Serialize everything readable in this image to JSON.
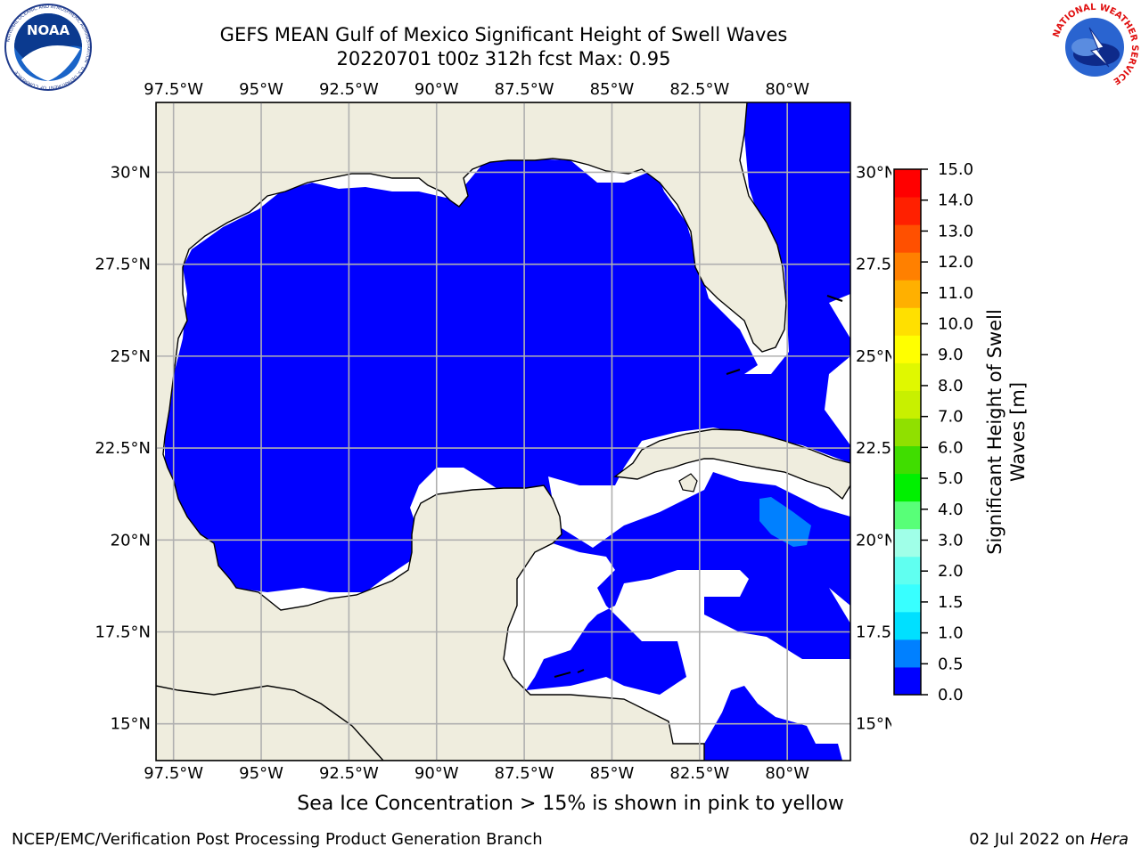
{
  "title_line1": "GEFS MEAN Gulf of Mexico Significant Height of Swell Waves",
  "title_line2": "20220701 t00z 312h fcst   Max: 0.95",
  "note": "Sea Ice Concentration > 15% is shown in pink to yellow",
  "footer_left": "NCEP/EMC/Verification Post Processing Product Generation Branch",
  "footer_date": "02 Jul 2022 on ",
  "footer_host": "Hera",
  "logos": {
    "noaa_text": "NOAA",
    "noaa_ring_text": "NATIONAL OCEANIC AND ATMOSPHERIC ADMINISTRATION · U.S. DEPARTMENT OF COMMERCE",
    "nws_ring_text": "NATIONAL WEATHER SERVICE"
  },
  "map": {
    "lon_labels": [
      "97.5°W",
      "95°W",
      "92.5°W",
      "90°W",
      "87.5°W",
      "85°W",
      "82.5°W",
      "80°W"
    ],
    "lat_labels": [
      "30°N",
      "27.5°N",
      "25°N",
      "22.5°N",
      "20°N",
      "17.5°N",
      "15°N"
    ],
    "lon_values": [
      -97.5,
      -95,
      -92.5,
      -90,
      -87.5,
      -85,
      -82.5,
      -80
    ],
    "lat_values": [
      30,
      27.5,
      25,
      22.5,
      20,
      17.5,
      15
    ],
    "lon_range": [
      -98,
      -78.2
    ],
    "lat_range": [
      14.0,
      31.9
    ],
    "colors": {
      "land": "#efedde",
      "ocean_low": "#0000ff",
      "ocean_mid": "#0080ff",
      "no_data": "#ffffff",
      "grid": "#b0b0b0",
      "coast": "#000000"
    }
  },
  "colorbar": {
    "label_line1": "Significant Height of Swell",
    "label_line2": "Waves [m]",
    "ticks": [
      "15.0",
      "14.0",
      "13.0",
      "12.0",
      "11.0",
      "10.0",
      "9.0",
      "8.0",
      "7.0",
      "6.0",
      "5.0",
      "4.0",
      "3.0",
      "2.0",
      "1.5",
      "1.0",
      "0.5",
      "0.0"
    ],
    "colors_bottom_to_top": [
      "#0000ff",
      "#0080ff",
      "#00e0ff",
      "#38ffff",
      "#60fff0",
      "#a0ffe8",
      "#58ff78",
      "#00f000",
      "#40dd00",
      "#90e000",
      "#c8f000",
      "#e0f800",
      "#ffff00",
      "#ffe000",
      "#ffb000",
      "#ff8000",
      "#ff5000",
      "#ff2000",
      "#ff0000"
    ]
  }
}
